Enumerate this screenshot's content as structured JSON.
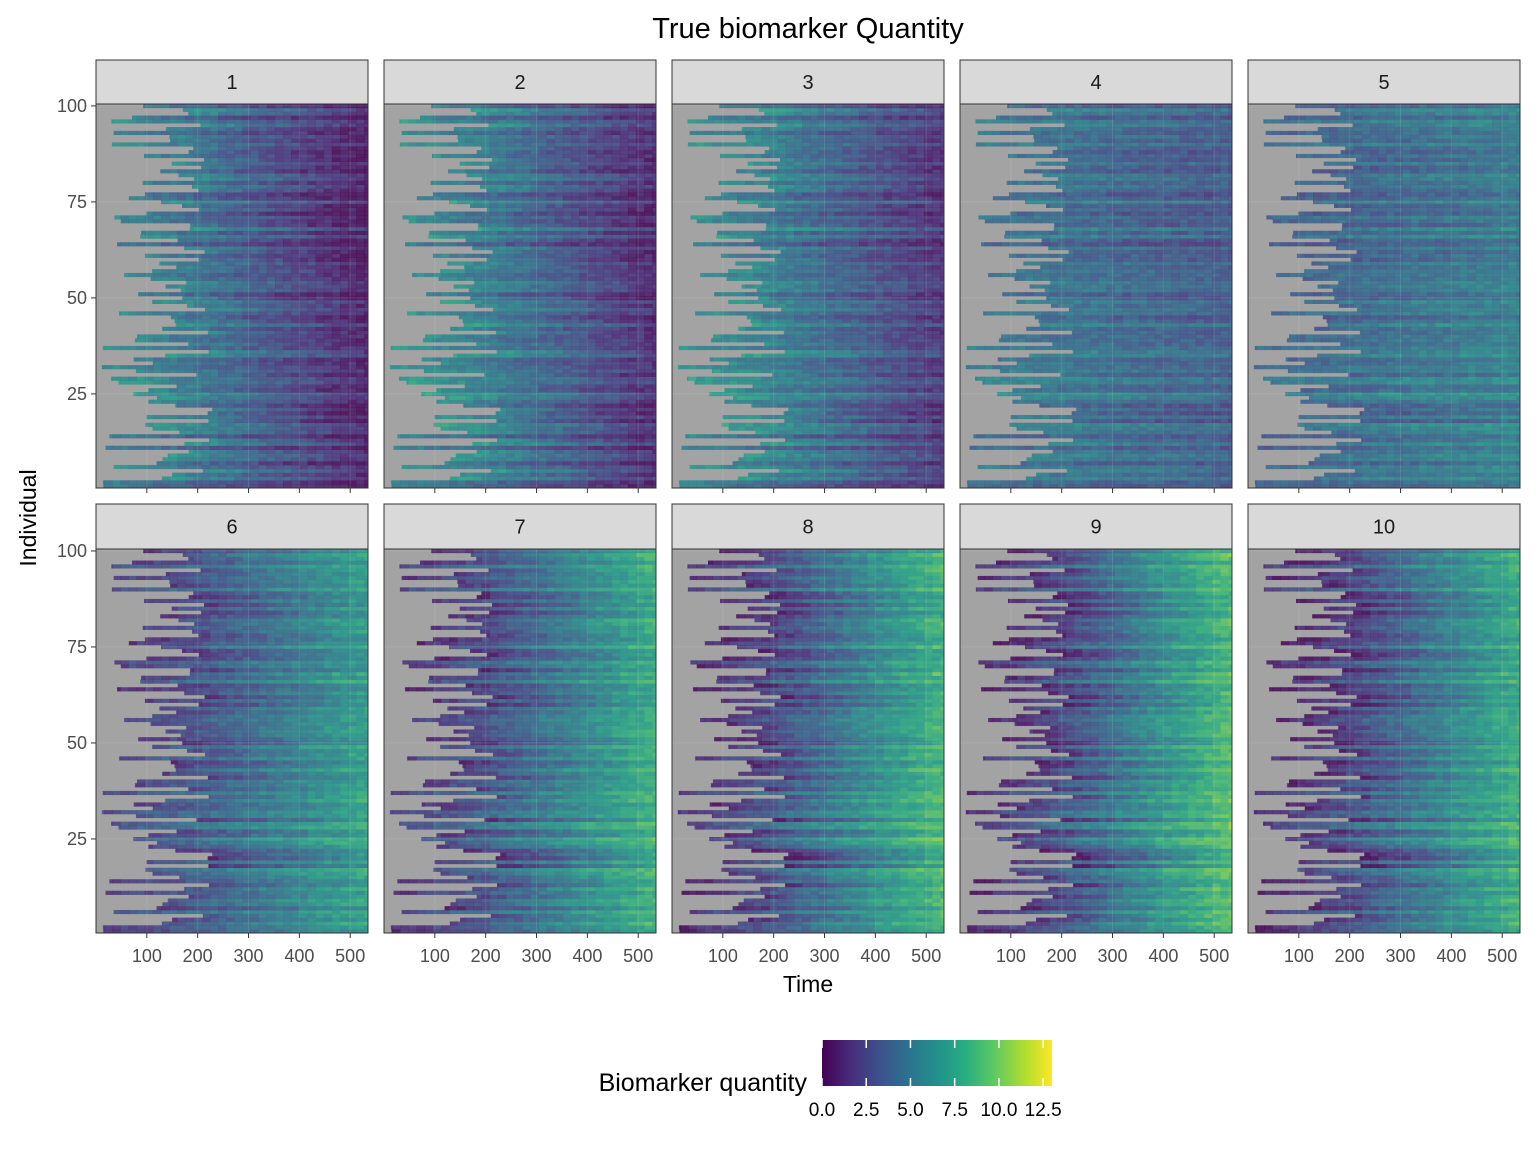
{
  "chart_data": {
    "type": "heatmap",
    "title": "True biomarker Quantity",
    "xlabel": "Time",
    "ylabel": "Individual",
    "facets": [
      "1",
      "2",
      "3",
      "4",
      "5",
      "6",
      "7",
      "8",
      "9",
      "10"
    ],
    "facet_layout": {
      "rows": 2,
      "cols": 5
    },
    "xlim": [
      0,
      535
    ],
    "ylim": [
      1,
      100
    ],
    "x_ticks": [
      100,
      200,
      300,
      400,
      500
    ],
    "x_tick_labels": [
      "100",
      "200",
      "300",
      "400",
      "500"
    ],
    "y_ticks": [
      25,
      50,
      75,
      100
    ],
    "y_tick_labels": [
      "25",
      "50",
      "75",
      "100"
    ],
    "missing_color": "#a3a3a3",
    "colorscale": "viridis",
    "legend": {
      "title": "Biomarker quantity",
      "position": "bottom",
      "range": [
        0,
        13
      ],
      "ticks": [
        0.0,
        2.5,
        5.0,
        7.5,
        10.0,
        12.5
      ],
      "tick_labels": [
        "0.0",
        "2.5",
        "5.0",
        "7.5",
        "10.0",
        "12.5"
      ]
    },
    "facet_summary": [
      {
        "facet": "1",
        "value_early": 6.0,
        "value_late": 0.5
      },
      {
        "facet": "2",
        "value_early": 6.5,
        "value_late": 1.0
      },
      {
        "facet": "3",
        "value_early": 6.5,
        "value_late": 1.5
      },
      {
        "facet": "4",
        "value_early": 5.0,
        "value_late": 3.5
      },
      {
        "facet": "5",
        "value_early": 4.0,
        "value_late": 5.5
      },
      {
        "facet": "6",
        "value_early": 2.0,
        "value_late": 7.5
      },
      {
        "facet": "7",
        "value_early": 1.5,
        "value_late": 8.5
      },
      {
        "facet": "8",
        "value_early": 1.0,
        "value_late": 9.0
      },
      {
        "facet": "9",
        "value_early": 0.8,
        "value_late": 9.5
      },
      {
        "facet": "10",
        "value_early": 0.8,
        "value_late": 8.5
      }
    ]
  }
}
